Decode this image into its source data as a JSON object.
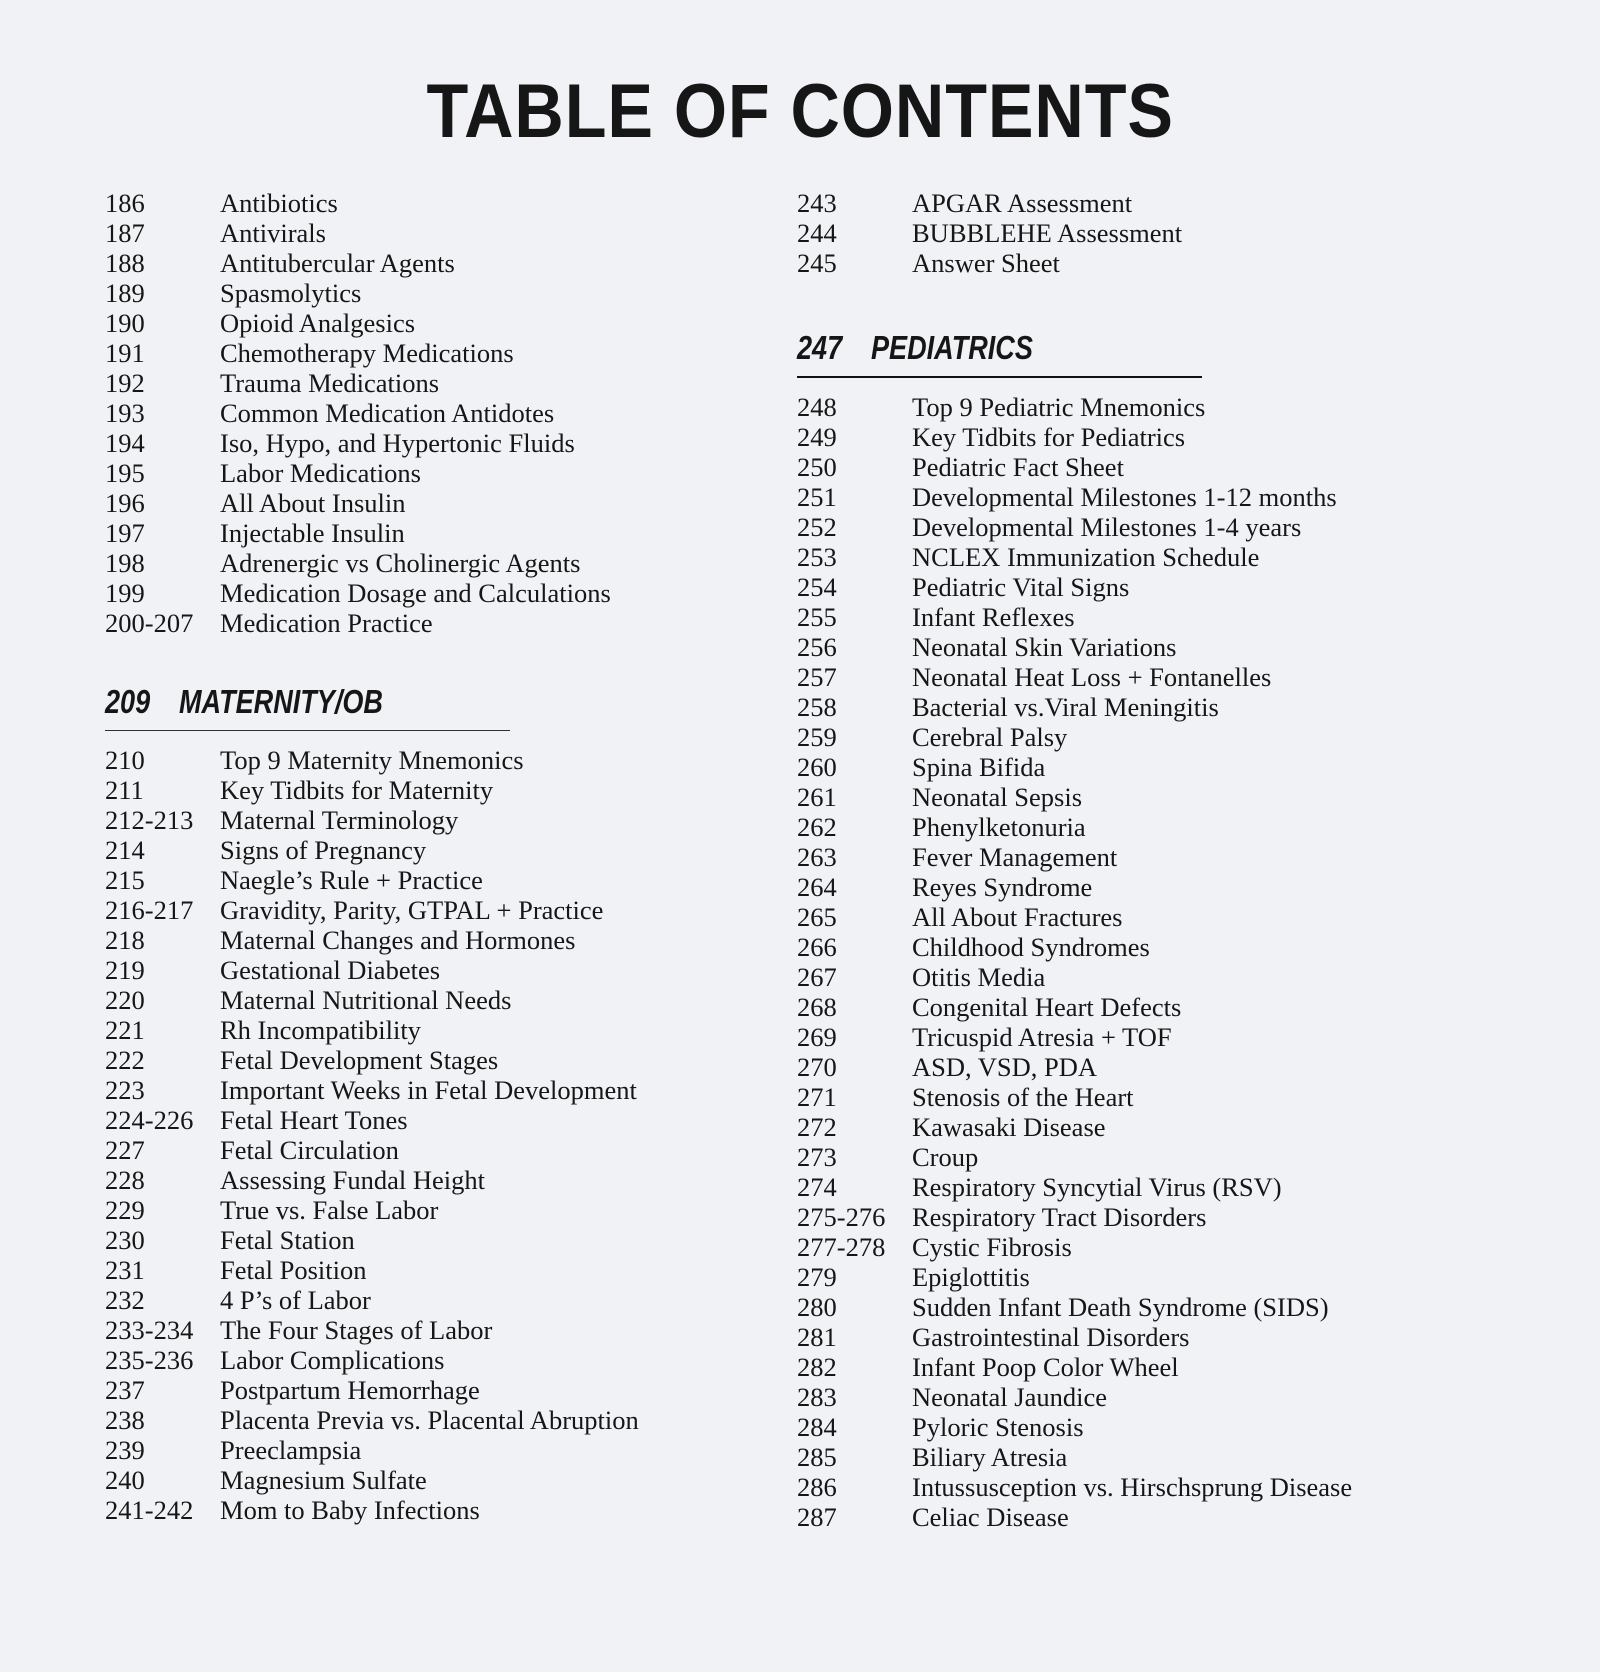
{
  "page": {
    "title": "TABLE OF CONTENTS",
    "background_color": "#f1f2f6",
    "text_color": "#161616"
  },
  "columns": [
    {
      "groups": [
        {
          "entries": [
            {
              "pages": "186",
              "title": "Antibiotics"
            },
            {
              "pages": "187",
              "title": "Antivirals"
            },
            {
              "pages": "188",
              "title": "Antitubercular Agents"
            },
            {
              "pages": "189",
              "title": "Spasmolytics"
            },
            {
              "pages": "190",
              "title": "Opioid Analgesics"
            },
            {
              "pages": "191",
              "title": "Chemotherapy Medications"
            },
            {
              "pages": "192",
              "title": "Trauma Medications"
            },
            {
              "pages": "193",
              "title": "Common Medication Antidotes"
            },
            {
              "pages": "194",
              "title": "Iso, Hypo, and Hypertonic Fluids"
            },
            {
              "pages": "195",
              "title": "Labor Medications"
            },
            {
              "pages": "196",
              "title": "All About Insulin"
            },
            {
              "pages": "197",
              "title": "Injectable Insulin"
            },
            {
              "pages": "198",
              "title": "Adrenergic vs Cholinergic Agents"
            },
            {
              "pages": "199",
              "title": "Medication Dosage and Calculations"
            },
            {
              "pages": "200-207",
              "title": "Medication Practice"
            }
          ]
        },
        {
          "header": {
            "pages": "209",
            "title": "MATERNITY/OB"
          },
          "entries": [
            {
              "pages": "210",
              "title": "Top 9 Maternity Mnemonics"
            },
            {
              "pages": "211",
              "title": "Key Tidbits for Maternity"
            },
            {
              "pages": "212-213",
              "title": "Maternal Terminology"
            },
            {
              "pages": "214",
              "title": "Signs of Pregnancy"
            },
            {
              "pages": "215",
              "title": "Naegle’s Rule + Practice"
            },
            {
              "pages": "216-217",
              "title": "Gravidity, Parity, GTPAL + Practice"
            },
            {
              "pages": "218",
              "title": "Maternal Changes and Hormones"
            },
            {
              "pages": "219",
              "title": "Gestational Diabetes"
            },
            {
              "pages": "220",
              "title": "Maternal Nutritional Needs"
            },
            {
              "pages": "221",
              "title": "Rh Incompatibility"
            },
            {
              "pages": "222",
              "title": "Fetal Development Stages"
            },
            {
              "pages": "223",
              "title": "Important Weeks in Fetal Development"
            },
            {
              "pages": "224-226",
              "title": "Fetal Heart Tones"
            },
            {
              "pages": "227",
              "title": "Fetal Circulation"
            },
            {
              "pages": "228",
              "title": "Assessing Fundal Height"
            },
            {
              "pages": "229",
              "title": "True vs. False Labor"
            },
            {
              "pages": "230",
              "title": "Fetal Station"
            },
            {
              "pages": "231",
              "title": "Fetal Position"
            },
            {
              "pages": "232",
              "title": "4 P’s of Labor"
            },
            {
              "pages": "233-234",
              "title": "The Four Stages of Labor"
            },
            {
              "pages": "235-236",
              "title": "Labor Complications"
            },
            {
              "pages": "237",
              "title": "Postpartum Hemorrhage"
            },
            {
              "pages": "238",
              "title": "Placenta Previa vs. Placental Abruption"
            },
            {
              "pages": "239",
              "title": "Preeclampsia"
            },
            {
              "pages": "240",
              "title": "Magnesium Sulfate"
            },
            {
              "pages": "241-242",
              "title": "Mom to Baby Infections"
            }
          ]
        }
      ]
    },
    {
      "groups": [
        {
          "entries": [
            {
              "pages": "243",
              "title": "APGAR Assessment"
            },
            {
              "pages": "244",
              "title": "BUBBLEHE Assessment"
            },
            {
              "pages": "245",
              "title": "Answer Sheet"
            }
          ]
        },
        {
          "header": {
            "pages": "247",
            "title": "PEDIATRICS"
          },
          "entries": [
            {
              "pages": "248",
              "title": "Top 9 Pediatric Mnemonics"
            },
            {
              "pages": "249",
              "title": "Key Tidbits for Pediatrics"
            },
            {
              "pages": "250",
              "title": "Pediatric Fact Sheet"
            },
            {
              "pages": "251",
              "title": "Developmental Milestones 1-12 months"
            },
            {
              "pages": "252",
              "title": "Developmental Milestones 1-4 years"
            },
            {
              "pages": "253",
              "title": "NCLEX Immunization Schedule"
            },
            {
              "pages": "254",
              "title": "Pediatric Vital Signs"
            },
            {
              "pages": "255",
              "title": "Infant Reflexes"
            },
            {
              "pages": "256",
              "title": "Neonatal Skin Variations"
            },
            {
              "pages": "257",
              "title": "Neonatal Heat Loss + Fontanelles"
            },
            {
              "pages": "258",
              "title": "Bacterial vs.Viral Meningitis"
            },
            {
              "pages": "259",
              "title": "Cerebral Palsy"
            },
            {
              "pages": "260",
              "title": "Spina Bifida"
            },
            {
              "pages": "261",
              "title": "Neonatal Sepsis"
            },
            {
              "pages": "262",
              "title": "Phenylketonuria"
            },
            {
              "pages": "263",
              "title": "Fever Management"
            },
            {
              "pages": "264",
              "title": "Reyes Syndrome"
            },
            {
              "pages": "265",
              "title": "All About Fractures"
            },
            {
              "pages": "266",
              "title": "Childhood Syndromes"
            },
            {
              "pages": "267",
              "title": "Otitis Media"
            },
            {
              "pages": "268",
              "title": "Congenital Heart Defects"
            },
            {
              "pages": "269",
              "title": "Tricuspid Atresia + TOF"
            },
            {
              "pages": "270",
              "title": "ASD, VSD, PDA"
            },
            {
              "pages": "271",
              "title": "Stenosis of the Heart"
            },
            {
              "pages": "272",
              "title": "Kawasaki Disease"
            },
            {
              "pages": "273",
              "title": "Croup"
            },
            {
              "pages": "274",
              "title": "Respiratory Syncytial Virus (RSV)"
            },
            {
              "pages": "275-276",
              "title": "Respiratory Tract Disorders"
            },
            {
              "pages": "277-278",
              "title": "Cystic Fibrosis"
            },
            {
              "pages": "279",
              "title": "Epiglottitis"
            },
            {
              "pages": "280",
              "title": "Sudden Infant Death Syndrome (SIDS)"
            },
            {
              "pages": "281",
              "title": "Gastrointestinal Disorders"
            },
            {
              "pages": "282",
              "title": "Infant Poop Color Wheel"
            },
            {
              "pages": "283",
              "title": "Neonatal Jaundice"
            },
            {
              "pages": "284",
              "title": "Pyloric Stenosis"
            },
            {
              "pages": "285",
              "title": "Biliary Atresia"
            },
            {
              "pages": "286",
              "title": "Intussusception vs. Hirschsprung Disease"
            },
            {
              "pages": "287",
              "title": "Celiac Disease"
            }
          ]
        }
      ]
    }
  ]
}
